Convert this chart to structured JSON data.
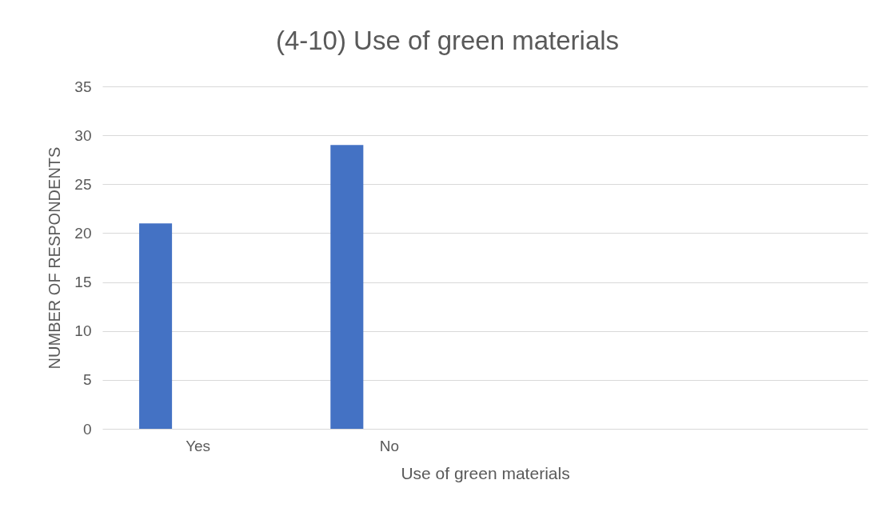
{
  "chart_data": {
    "type": "bar",
    "title": "(4-10) Use of green materials",
    "xlabel": "Use of green materials",
    "ylabel": "NUMBER OF RESPONDENTS",
    "categories": [
      "Yes",
      "No",
      null,
      null
    ],
    "values": [
      21,
      29,
      null,
      null
    ],
    "color": "#4472c4",
    "ylim": [
      0,
      35
    ],
    "yticks": [
      0,
      5,
      10,
      15,
      20,
      25,
      30,
      35
    ],
    "grid": "y"
  }
}
